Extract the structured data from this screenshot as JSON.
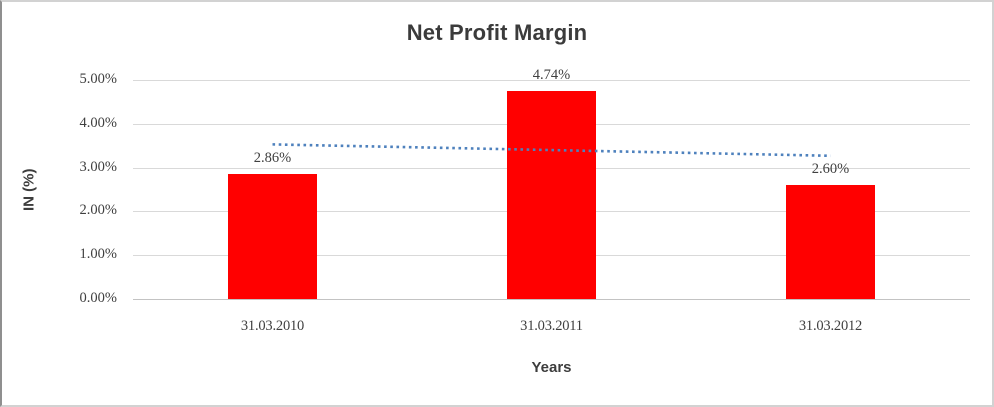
{
  "chart_data": {
    "type": "bar",
    "title": "Net Profit Margin",
    "xlabel": "Years",
    "ylabel": "IN (%)",
    "categories": [
      "31.03.2010",
      "31.03.2011",
      "31.03.2012"
    ],
    "values": [
      2.86,
      4.74,
      2.6
    ],
    "data_labels": [
      "2.86%",
      "4.74%",
      "2.60%"
    ],
    "ylim": [
      0,
      5
    ],
    "ytick_labels": [
      "0.00%",
      "1.00%",
      "2.00%",
      "3.00%",
      "4.00%",
      "5.00%"
    ],
    "grid": true,
    "legend": "none",
    "bar_color": "#ff0000",
    "text_color": "#3f3f3f",
    "gridline_color": "#d9d9d9",
    "trendline": {
      "type": "linear",
      "style": "dotted",
      "color": "#4e81bd",
      "fit_values": [
        3.53,
        3.4,
        3.27
      ]
    }
  }
}
